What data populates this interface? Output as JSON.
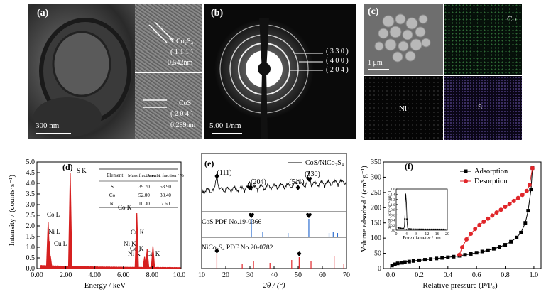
{
  "panel_a": {
    "label": "(a)",
    "scale_bar": "300 nm",
    "inset_top": {
      "phase": "NiCo₂S₄",
      "plane": "( 1 1 1 )",
      "spacing": "0.542nm"
    },
    "inset_bottom": {
      "phase": "CoS",
      "plane": "( 2 0 4 )",
      "spacing": "0.289nm"
    }
  },
  "panel_b": {
    "label": "(b)",
    "rings": [
      "( 3 3 0 )",
      "( 4 0 0 )",
      "( 2 0 4 )"
    ],
    "scale_bar": "5.00 1/nm"
  },
  "panel_c": {
    "label": "(c)",
    "scale_bar": "1 μm",
    "maps": [
      "Co",
      "Ni",
      "S"
    ]
  },
  "panel_d": {
    "label": "(d)",
    "ylabel": "Intensity / (counts·s⁻¹)",
    "xlabel": "Energy / keV",
    "xticks": [
      "0.00",
      "2.00",
      "4.00",
      "6.00",
      "8.00",
      "10.00"
    ],
    "yticks": [
      "0.0",
      "0.5",
      "1.0",
      "1.5",
      "2.0",
      "2.5",
      "3.0",
      "3.5",
      "4.0",
      "4.5",
      "5.0"
    ],
    "peaks": [
      "Co L",
      "Ni L",
      "Cu L",
      "S K",
      "Co K",
      "Cu K",
      "Ni K",
      "Co K",
      "Ni K",
      "Cu K"
    ],
    "table": {
      "headers": [
        "Element",
        "Mass fraction / %",
        "Atomic fraction / %"
      ],
      "rows": [
        [
          "S",
          "39.70",
          "53.90"
        ],
        [
          "Co",
          "52.00",
          "38.40"
        ],
        [
          "Ni",
          "10.30",
          "7.60"
        ]
      ]
    }
  },
  "panel_e": {
    "label": "(e)",
    "legend": "CoS/NiCo₂S₄",
    "xlabel": "2θ / (°)",
    "xticks": [
      "10",
      "20",
      "30",
      "40",
      "50",
      "60",
      "70"
    ],
    "peak_labels": [
      "(111)",
      "(204)",
      "(511)",
      "(330)"
    ],
    "ref1": "CoS PDF No.19-0366",
    "ref2": "NiCo₂S₄ PDF No.20-0782"
  },
  "panel_f": {
    "label": "(f)",
    "ylabel": "Volume adsorbed / (cm³·g⁻¹)",
    "xlabel": "Relative pressure (P/P₀)",
    "xticks": [
      "0.0",
      "0.2",
      "0.4",
      "0.6",
      "0.8",
      "1.0"
    ],
    "yticks": [
      "0",
      "50",
      "100",
      "150",
      "200",
      "250",
      "300",
      "350"
    ],
    "legend": [
      "Adsorption",
      "Desorption"
    ],
    "colors": {
      "adsorption": "#000000",
      "desorption": "#e0262a"
    },
    "inset": {
      "xlabel": "Pore diameter / nm",
      "ylabel": "dV/dD / (cm³·g⁻¹·nm⁻¹)",
      "xticks": [
        "0",
        "4",
        "8",
        "12",
        "16",
        "20"
      ],
      "yticks": [
        "0.0",
        "0.2",
        "0.4",
        "0.6",
        "0.8",
        "1.0",
        "1.2",
        "1.4",
        "1.6"
      ]
    }
  },
  "chart_data": [
    {
      "type": "bar",
      "title": "",
      "xlabel": "Energy / keV",
      "ylabel": "Intensity / (counts·s⁻¹)",
      "xlim": [
        0,
        10
      ],
      "ylim": [
        0,
        5
      ],
      "x": [
        0.78,
        0.85,
        0.93,
        2.31,
        6.93,
        7.47,
        7.65,
        8.05
      ],
      "values": [
        2.2,
        1.3,
        0.6,
        4.5,
        2.6,
        0.55,
        0.9,
        1.05
      ]
    },
    {
      "type": "line",
      "title": "",
      "xlabel": "2θ / (°)",
      "xlim": [
        10,
        70
      ],
      "peaks_x": [
        16.3,
        29.9,
        49.9,
        54.5
      ],
      "ref_CoS_x": [
        30.6,
        35.3,
        45.8,
        54.4,
        62.8,
        64.5,
        66.3
      ],
      "ref_NiCo2S4_x": [
        16.3,
        26.8,
        31.5,
        38.3,
        47.3,
        50.4,
        55.3,
        64.9,
        68.9
      ]
    },
    {
      "type": "line",
      "title": "",
      "xlabel": "Relative pressure (P/P₀)",
      "ylabel": "Volume adsorbed / (cm³·g⁻¹)",
      "xlim": [
        -0.05,
        1.05
      ],
      "ylim": [
        0,
        350
      ],
      "series": [
        {
          "name": "Adsorption",
          "x": [
            0.01,
            0.03,
            0.05,
            0.08,
            0.1,
            0.13,
            0.16,
            0.2,
            0.24,
            0.28,
            0.32,
            0.36,
            0.4,
            0.44,
            0.48,
            0.52,
            0.56,
            0.6,
            0.64,
            0.68,
            0.72,
            0.76,
            0.8,
            0.84,
            0.88,
            0.91,
            0.94,
            0.96,
            0.98,
            0.99
          ],
          "values": [
            10,
            14,
            17,
            19,
            21,
            23,
            25,
            27,
            29,
            31,
            33,
            35,
            37,
            39,
            42,
            45,
            48,
            52,
            56,
            60,
            65,
            71,
            78,
            88,
            102,
            118,
            150,
            190,
            260,
            330
          ]
        },
        {
          "name": "Desorption",
          "x": [
            0.99,
            0.97,
            0.95,
            0.92,
            0.89,
            0.86,
            0.83,
            0.8,
            0.77,
            0.74,
            0.71,
            0.68,
            0.65,
            0.62,
            0.59,
            0.56,
            0.53,
            0.5,
            0.48
          ],
          "values": [
            330,
            275,
            255,
            242,
            232,
            222,
            212,
            203,
            193,
            184,
            174,
            164,
            154,
            143,
            130,
            114,
            96,
            70,
            45
          ]
        }
      ]
    }
  ]
}
